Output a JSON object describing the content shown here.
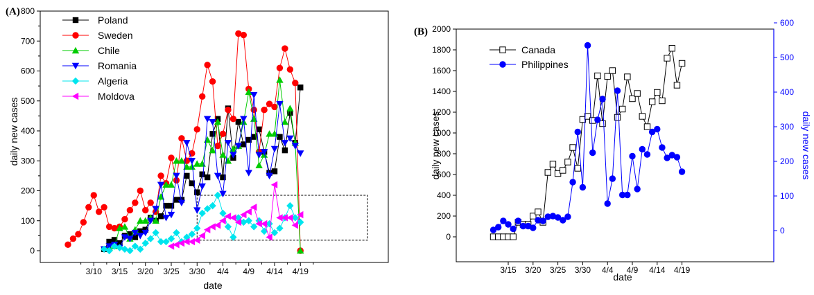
{
  "chart_data": [
    {
      "panel_label": "(A)",
      "type": "line",
      "xlabel": "date",
      "ylabel": "daily new cases",
      "ylim": [
        0,
        800
      ],
      "yticks": [
        0,
        100,
        200,
        300,
        400,
        500,
        600,
        700,
        800
      ],
      "xticks": [
        "3/10",
        "3/15",
        "3/20",
        "3/25",
        "3/30",
        "4/4",
        "4/9",
        "4/14",
        "4/19"
      ],
      "x_dates": [
        "3/10",
        "3/11",
        "3/12",
        "3/13",
        "3/14",
        "3/15",
        "3/16",
        "3/17",
        "3/18",
        "3/19",
        "3/20",
        "3/21",
        "3/22",
        "3/23",
        "3/24",
        "3/25",
        "3/26",
        "3/27",
        "3/28",
        "3/29",
        "3/30",
        "3/31",
        "4/1",
        "4/2",
        "4/3",
        "4/4",
        "4/5",
        "4/6",
        "4/7",
        "4/8",
        "4/9",
        "4/10",
        "4/11",
        "4/12",
        "4/13",
        "4/14",
        "4/15",
        "4/16",
        "4/17",
        "4/18",
        "4/19",
        "4/20"
      ],
      "legend_position": "top-left",
      "annotation": "dashed rectangle highlighting the lower region from 3/30 to 4/20",
      "series": [
        {
          "name": "Poland",
          "color": "#000000",
          "marker": "square",
          "x": [
            "3/12",
            "3/13",
            "3/14",
            "3/15",
            "3/16",
            "3/17",
            "3/18",
            "3/19",
            "3/20",
            "3/21",
            "3/22",
            "3/23",
            "3/24",
            "3/25",
            "3/26",
            "3/27",
            "3/28",
            "3/29",
            "3/30",
            "3/31",
            "4/1",
            "4/2",
            "4/3",
            "4/4",
            "4/5",
            "4/6",
            "4/7",
            "4/8",
            "4/9",
            "4/10",
            "4/11",
            "4/12",
            "4/13",
            "4/14",
            "4/15",
            "4/16",
            "4/17",
            "4/18",
            "4/19"
          ],
          "values": [
            5,
            30,
            36,
            25,
            50,
            55,
            45,
            65,
            70,
            110,
            100,
            115,
            150,
            150,
            170,
            170,
            250,
            225,
            195,
            255,
            245,
            390,
            440,
            245,
            475,
            310,
            430,
            355,
            370,
            380,
            405,
            330,
            260,
            265,
            380,
            335,
            460,
            360,
            545
          ]
        },
        {
          "name": "Sweden",
          "color": "#ff0000",
          "marker": "circle",
          "x": [
            "3/5",
            "3/6",
            "3/7",
            "3/8",
            "3/9",
            "3/10",
            "3/11",
            "3/12",
            "3/13",
            "3/14",
            "3/15",
            "3/16",
            "3/17",
            "3/18",
            "3/19",
            "3/20",
            "3/21",
            "3/22",
            "3/23",
            "3/24",
            "3/25",
            "3/26",
            "3/27",
            "3/28",
            "3/29",
            "3/30",
            "3/31",
            "4/1",
            "4/2",
            "4/3",
            "4/4",
            "4/5",
            "4/6",
            "4/7",
            "4/8",
            "4/9",
            "4/10",
            "4/11",
            "4/12",
            "4/13",
            "4/14",
            "4/15",
            "4/16",
            "4/17",
            "4/18",
            "4/19"
          ],
          "values": [
            20,
            40,
            55,
            95,
            145,
            185,
            130,
            145,
            80,
            75,
            80,
            105,
            135,
            160,
            200,
            135,
            160,
            130,
            250,
            225,
            310,
            235,
            375,
            300,
            325,
            405,
            515,
            620,
            565,
            350,
            390,
            470,
            440,
            725,
            720,
            540,
            470,
            330,
            470,
            490,
            480,
            610,
            675,
            605,
            560,
            0
          ]
        },
        {
          "name": "Chile",
          "color": "#00cc00",
          "marker": "triangle-up",
          "x": [
            "3/13",
            "3/14",
            "3/15",
            "3/16",
            "3/17",
            "3/18",
            "3/19",
            "3/20",
            "3/21",
            "3/22",
            "3/23",
            "3/24",
            "3/25",
            "3/26",
            "3/27",
            "3/28",
            "3/29",
            "3/30",
            "3/31",
            "4/1",
            "4/2",
            "4/3",
            "4/4",
            "4/5",
            "4/6",
            "4/7",
            "4/8",
            "4/9",
            "4/10",
            "4/11",
            "4/12",
            "4/13",
            "4/14",
            "4/15",
            "4/16",
            "4/17",
            "4/18",
            "4/19"
          ],
          "values": [
            10,
            15,
            75,
            80,
            40,
            70,
            100,
            100,
            110,
            100,
            180,
            220,
            220,
            300,
            300,
            280,
            280,
            290,
            290,
            370,
            335,
            430,
            320,
            300,
            340,
            350,
            430,
            530,
            440,
            285,
            320,
            390,
            390,
            570,
            430,
            475,
            360,
            0
          ]
        },
        {
          "name": "Romania",
          "color": "#0000ff",
          "marker": "triangle-down",
          "x": [
            "3/12",
            "3/13",
            "3/14",
            "3/15",
            "3/16",
            "3/17",
            "3/18",
            "3/19",
            "3/20",
            "3/21",
            "3/22",
            "3/23",
            "3/24",
            "3/25",
            "3/26",
            "3/27",
            "3/28",
            "3/29",
            "3/30",
            "3/31",
            "4/1",
            "4/2",
            "4/3",
            "4/4",
            "4/5",
            "4/6",
            "4/7",
            "4/8",
            "4/9",
            "4/10",
            "4/11",
            "4/12",
            "4/13",
            "4/14",
            "4/15",
            "4/16",
            "4/17",
            "4/18",
            "4/19"
          ],
          "values": [
            5,
            15,
            20,
            10,
            45,
            40,
            60,
            50,
            60,
            100,
            140,
            220,
            110,
            120,
            250,
            160,
            360,
            300,
            135,
            215,
            440,
            430,
            250,
            190,
            360,
            320,
            350,
            440,
            260,
            520,
            320,
            330,
            250,
            340,
            490,
            360,
            375,
            350,
            325
          ]
        },
        {
          "name": "Algeria",
          "color": "#00e5ee",
          "marker": "diamond",
          "x": [
            "3/12",
            "3/13",
            "3/14",
            "3/15",
            "3/16",
            "3/17",
            "3/18",
            "3/19",
            "3/20",
            "3/21",
            "3/22",
            "3/23",
            "3/24",
            "3/25",
            "3/26",
            "3/27",
            "3/28",
            "3/29",
            "3/30",
            "3/31",
            "4/1",
            "4/2",
            "4/3",
            "4/4",
            "4/5",
            "4/6",
            "4/7",
            "4/8",
            "4/9",
            "4/10",
            "4/11",
            "4/12",
            "4/13",
            "4/14",
            "4/15",
            "4/16",
            "4/17",
            "4/18",
            "4/19"
          ],
          "values": [
            5,
            0,
            15,
            10,
            5,
            0,
            15,
            5,
            25,
            40,
            60,
            30,
            30,
            40,
            60,
            30,
            45,
            55,
            75,
            125,
            140,
            150,
            185,
            125,
            80,
            45,
            110,
            95,
            100,
            80,
            100,
            65,
            90,
            60,
            75,
            110,
            150,
            110,
            95
          ]
        },
        {
          "name": "Moldova",
          "color": "#ff00ff",
          "marker": "triangle-left",
          "x": [
            "3/25",
            "3/26",
            "3/27",
            "3/28",
            "3/29",
            "3/30",
            "3/31",
            "4/1",
            "4/2",
            "4/3",
            "4/4",
            "4/5",
            "4/6",
            "4/7",
            "4/8",
            "4/9",
            "4/10",
            "4/11",
            "4/12",
            "4/13",
            "4/14",
            "4/15",
            "4/16",
            "4/17",
            "4/18",
            "4/19"
          ],
          "values": [
            15,
            20,
            25,
            30,
            30,
            35,
            50,
            70,
            80,
            85,
            100,
            115,
            110,
            95,
            120,
            130,
            145,
            90,
            90,
            45,
            220,
            110,
            110,
            110,
            85,
            120
          ]
        }
      ]
    },
    {
      "panel_label": "(B)",
      "type": "line",
      "xlabel": "date",
      "ylabel": "daily new cases",
      "ylabel_right": "daily new cases",
      "ylim": [
        -100,
        2000
      ],
      "yticks": [
        0,
        200,
        400,
        600,
        800,
        1000,
        1200,
        1400,
        1600,
        1800,
        2000
      ],
      "ylim_right": [
        -50,
        600
      ],
      "yticks_right": [
        0,
        100,
        200,
        300,
        400,
        500,
        600
      ],
      "xticks": [
        "3/15",
        "3/20",
        "3/25",
        "3/30",
        "4/4",
        "4/9",
        "4/14",
        "4/19"
      ],
      "legend_position": "top-left",
      "series": [
        {
          "name": "Canada",
          "color": "#000000",
          "marker": "open-square",
          "axis": "left",
          "x": [
            "3/12",
            "3/13",
            "3/14",
            "3/15",
            "3/16",
            "3/17",
            "3/18",
            "3/19",
            "3/20",
            "3/21",
            "3/22",
            "3/23",
            "3/24",
            "3/25",
            "3/26",
            "3/27",
            "3/28",
            "3/29",
            "3/30",
            "3/31",
            "4/1",
            "4/2",
            "4/3",
            "4/4",
            "4/5",
            "4/6",
            "4/7",
            "4/8",
            "4/9",
            "4/10",
            "4/11",
            "4/12",
            "4/13",
            "4/14",
            "4/15",
            "4/16",
            "4/17",
            "4/18",
            "4/19"
          ],
          "values": [
            0,
            0,
            0,
            0,
            0,
            140,
            120,
            120,
            200,
            240,
            140,
            620,
            700,
            610,
            640,
            720,
            860,
            660,
            1130,
            1160,
            1120,
            1550,
            1090,
            1545,
            1600,
            1150,
            1230,
            1540,
            1330,
            1380,
            1160,
            1060,
            1300,
            1390,
            1310,
            1720,
            1815,
            1460,
            1670
          ]
        },
        {
          "name": "Philippines",
          "color": "#0000ff",
          "marker": "filled-circle",
          "axis": "right",
          "x": [
            "3/12",
            "3/13",
            "3/14",
            "3/15",
            "3/16",
            "3/17",
            "3/18",
            "3/19",
            "3/20",
            "3/21",
            "3/22",
            "3/23",
            "3/24",
            "3/25",
            "3/26",
            "3/27",
            "3/28",
            "3/29",
            "3/30",
            "3/31",
            "4/1",
            "4/2",
            "4/3",
            "4/4",
            "4/5",
            "4/6",
            "4/7",
            "4/8",
            "4/9",
            "4/10",
            "4/11",
            "4/12",
            "4/13",
            "4/14",
            "4/15",
            "4/16",
            "4/17",
            "4/18",
            "4/19"
          ],
          "values": [
            2,
            10,
            28,
            18,
            5,
            28,
            13,
            13,
            8,
            30,
            28,
            40,
            42,
            38,
            30,
            40,
            140,
            285,
            125,
            535,
            225,
            320,
            380,
            78,
            150,
            404,
            103,
            103,
            215,
            120,
            235,
            220,
            285,
            293,
            240,
            210,
            218,
            212,
            170
          ]
        }
      ]
    }
  ]
}
